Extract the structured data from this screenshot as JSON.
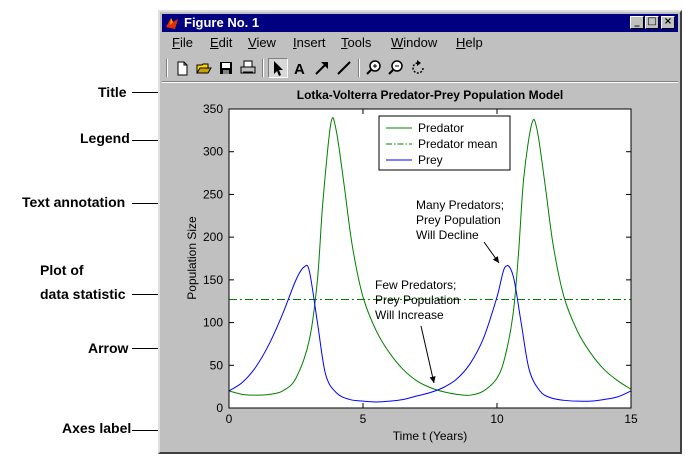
{
  "window": {
    "title": "Figure No. 1",
    "controls": [
      "_",
      "□",
      "×"
    ]
  },
  "menu": [
    "File",
    "Edit",
    "View",
    "Insert",
    "Tools",
    "Window",
    "Help"
  ],
  "toolbar": {
    "tools": [
      "new-file-icon",
      "open-folder-icon",
      "save-icon",
      "print-icon",
      "select-arrow-icon",
      "text-icon",
      "arrow-icon",
      "line-icon",
      "zoom-in-icon",
      "zoom-out-icon",
      "rotate-icon"
    ],
    "selected": "select-arrow-icon"
  },
  "callouts": [
    "Title",
    "Legend",
    "Text annotation",
    "Plot of",
    "data statistic",
    "Arrow",
    "Axes label"
  ],
  "annotations": {
    "predators_many": [
      "Many Predators;",
      "Prey Population",
      "Will Decline"
    ],
    "predators_few": [
      "Few Predators;",
      "Prey Population",
      "Will Increase"
    ]
  },
  "chart_data": {
    "type": "line",
    "title": "Lotka-Volterra Predator-Prey Population Model",
    "xlabel": "Time t (Years)",
    "ylabel": "Population Size",
    "xlim": [
      0,
      15
    ],
    "ylim": [
      0,
      350
    ],
    "xticks": [
      0,
      5,
      10,
      15
    ],
    "yticks": [
      0,
      50,
      100,
      150,
      200,
      250,
      300,
      350
    ],
    "grid": false,
    "legend_position": "top-center",
    "series": [
      {
        "name": "Predator",
        "color": "#008000",
        "style": "solid",
        "x": [
          0,
          0.5,
          1,
          1.5,
          2,
          2.5,
          3,
          3.3,
          3.5,
          3.8,
          4,
          4.3,
          4.6,
          5,
          5.5,
          6,
          6.5,
          7,
          7.5,
          8,
          8.5,
          9,
          9.5,
          10,
          10.3,
          10.6,
          10.8,
          11,
          11.3,
          11.5,
          11.8,
          12.1,
          12.5,
          13,
          13.5,
          14,
          14.5,
          15
        ],
        "y": [
          20,
          16,
          15,
          16,
          20,
          35,
          80,
          150,
          240,
          333,
          325,
          260,
          190,
          130,
          90,
          64,
          45,
          32,
          24,
          19,
          16,
          15,
          20,
          35,
          60,
          110,
          180,
          270,
          333,
          325,
          260,
          190,
          130,
          90,
          64,
          45,
          32,
          22
        ]
      },
      {
        "name": "Predator mean",
        "color": "#008000",
        "style": "dashdot",
        "x": [
          0,
          15
        ],
        "y": [
          127,
          127
        ]
      },
      {
        "name": "Prey",
        "color": "#0000ff",
        "style": "solid",
        "x": [
          0,
          0.5,
          1,
          1.5,
          2,
          2.5,
          2.8,
          3,
          3.3,
          3.6,
          4,
          4.5,
          5,
          5.5,
          6,
          6.5,
          7,
          7.5,
          8,
          8.5,
          9,
          9.5,
          10,
          10.3,
          10.6,
          10.9,
          11.2,
          11.6,
          12,
          12.5,
          13,
          13.5,
          14,
          14.5,
          15
        ],
        "y": [
          20,
          30,
          48,
          75,
          110,
          150,
          165,
          160,
          100,
          40,
          18,
          10,
          8,
          7,
          8,
          10,
          14,
          18,
          24,
          34,
          52,
          82,
          130,
          165,
          155,
          100,
          45,
          20,
          12,
          9,
          8,
          8,
          10,
          13,
          20
        ]
      }
    ]
  }
}
